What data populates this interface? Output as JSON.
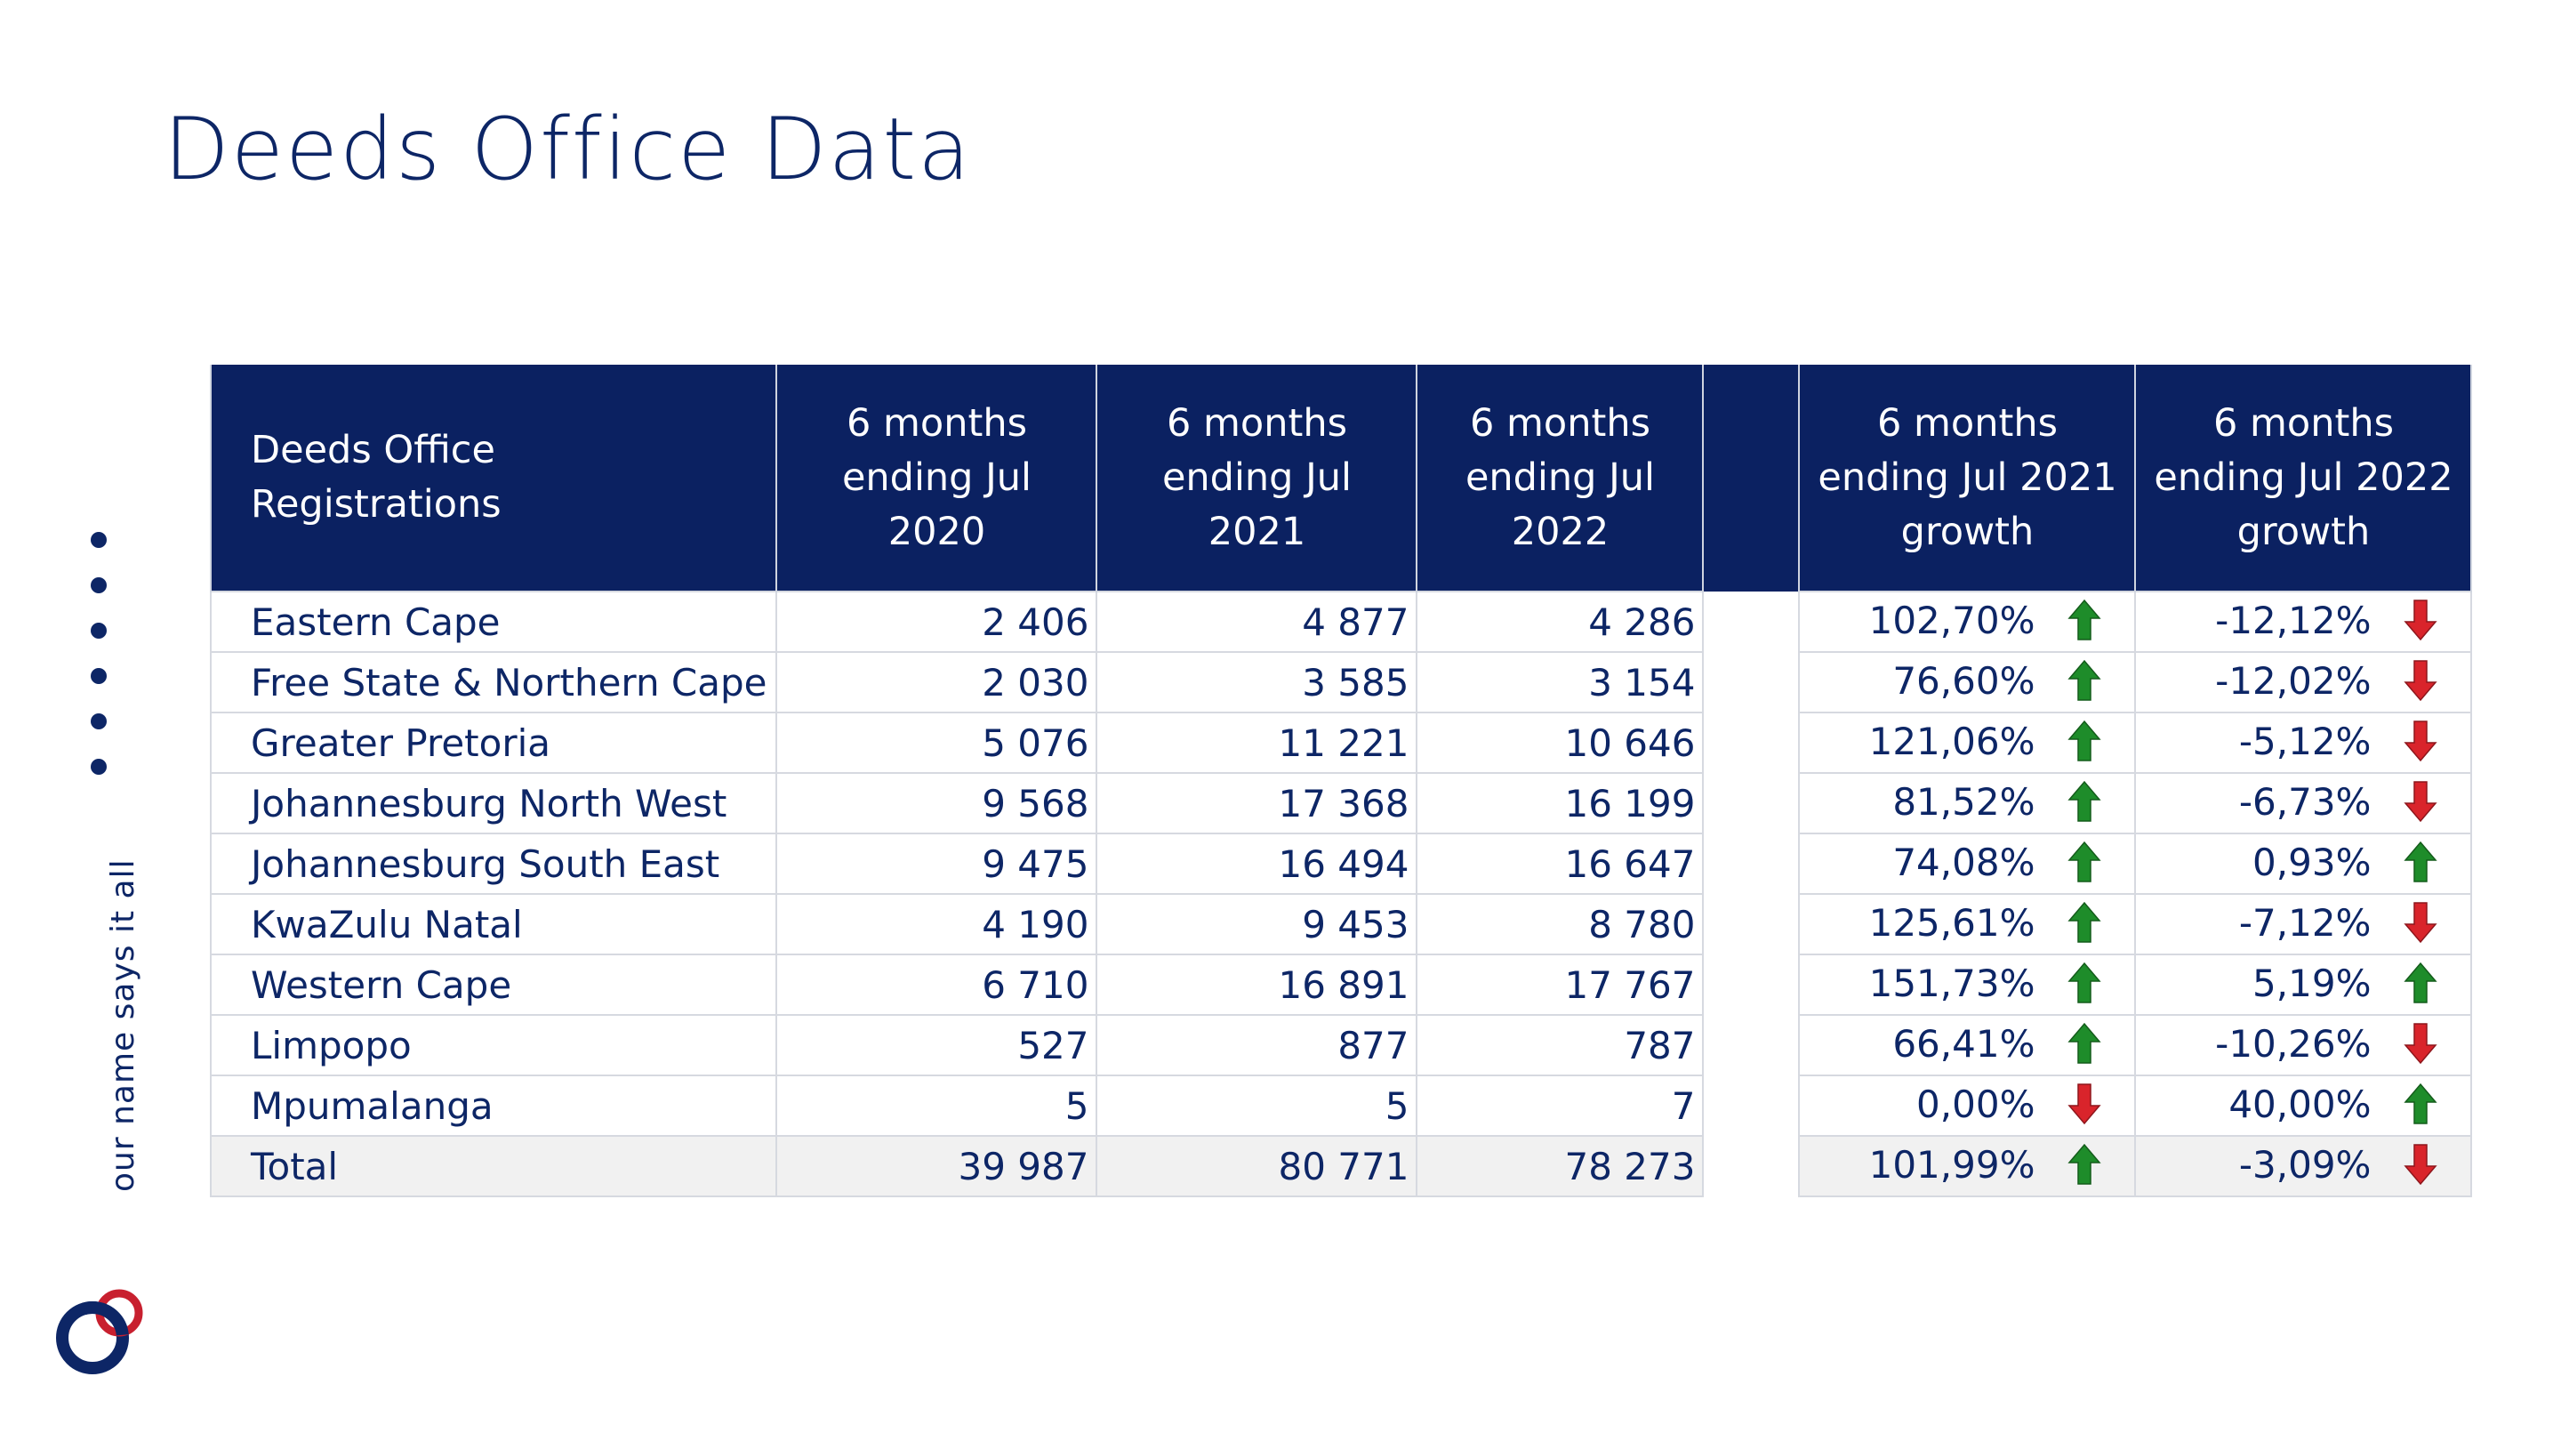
{
  "title": "Deeds Office Data",
  "side_tagline": "our name says it all",
  "table": {
    "header": {
      "label": "Deeds Office\nRegistrations",
      "col1": "6 months\nending Jul\n2020",
      "col2": "6 months\nending Jul\n2021",
      "col3": "6 months\nending Jul\n2022",
      "col4": "6 months\nending Jul 2021\ngrowth",
      "col5": "6 months\nending Jul 2022\ngrowth"
    },
    "rows": [
      {
        "name": "Eastern Cape",
        "v2020": "2 406",
        "v2021": "4 877",
        "v2022": "4 286",
        "g2021": "102,70%",
        "g2021_dir": "up",
        "g2022": "-12,12%",
        "g2022_dir": "down"
      },
      {
        "name": "Free State & Northern Cape",
        "v2020": "2 030",
        "v2021": "3 585",
        "v2022": "3 154",
        "g2021": "76,60%",
        "g2021_dir": "up",
        "g2022": "-12,02%",
        "g2022_dir": "down"
      },
      {
        "name": "Greater Pretoria",
        "v2020": "5 076",
        "v2021": "11 221",
        "v2022": "10 646",
        "g2021": "121,06%",
        "g2021_dir": "up",
        "g2022": "-5,12%",
        "g2022_dir": "down"
      },
      {
        "name": "Johannesburg North West",
        "v2020": "9 568",
        "v2021": "17 368",
        "v2022": "16 199",
        "g2021": "81,52%",
        "g2021_dir": "up",
        "g2022": "-6,73%",
        "g2022_dir": "down"
      },
      {
        "name": "Johannesburg South East",
        "v2020": "9 475",
        "v2021": "16 494",
        "v2022": "16 647",
        "g2021": "74,08%",
        "g2021_dir": "up",
        "g2022": "0,93%",
        "g2022_dir": "up"
      },
      {
        "name": "KwaZulu Natal",
        "v2020": "4 190",
        "v2021": "9 453",
        "v2022": "8 780",
        "g2021": "125,61%",
        "g2021_dir": "up",
        "g2022": "-7,12%",
        "g2022_dir": "down"
      },
      {
        "name": "Western Cape",
        "v2020": "6 710",
        "v2021": "16 891",
        "v2022": "17 767",
        "g2021": "151,73%",
        "g2021_dir": "up",
        "g2022": "5,19%",
        "g2022_dir": "up"
      },
      {
        "name": "Limpopo",
        "v2020": "527",
        "v2021": "877",
        "v2022": "787",
        "g2021": "66,41%",
        "g2021_dir": "up",
        "g2022": "-10,26%",
        "g2022_dir": "down"
      },
      {
        "name": "Mpumalanga",
        "v2020": "5",
        "v2021": "5",
        "v2022": "7",
        "g2021": "0,00%",
        "g2021_dir": "down",
        "g2022": "40,00%",
        "g2022_dir": "up"
      }
    ],
    "total": {
      "name": "Total",
      "v2020": "39 987",
      "v2021": "80 771",
      "v2022": "78 273",
      "g2021": "101,99%",
      "g2021_dir": "up",
      "g2022": "-3,09%",
      "g2022_dir": "down"
    }
  },
  "colors": {
    "header_bg": "#0b2161",
    "text": "#0d2666",
    "arrow_up": "#1e8c2a",
    "arrow_down": "#d9242b",
    "logo_blue": "#0d2666",
    "logo_red": "#c8202f"
  }
}
